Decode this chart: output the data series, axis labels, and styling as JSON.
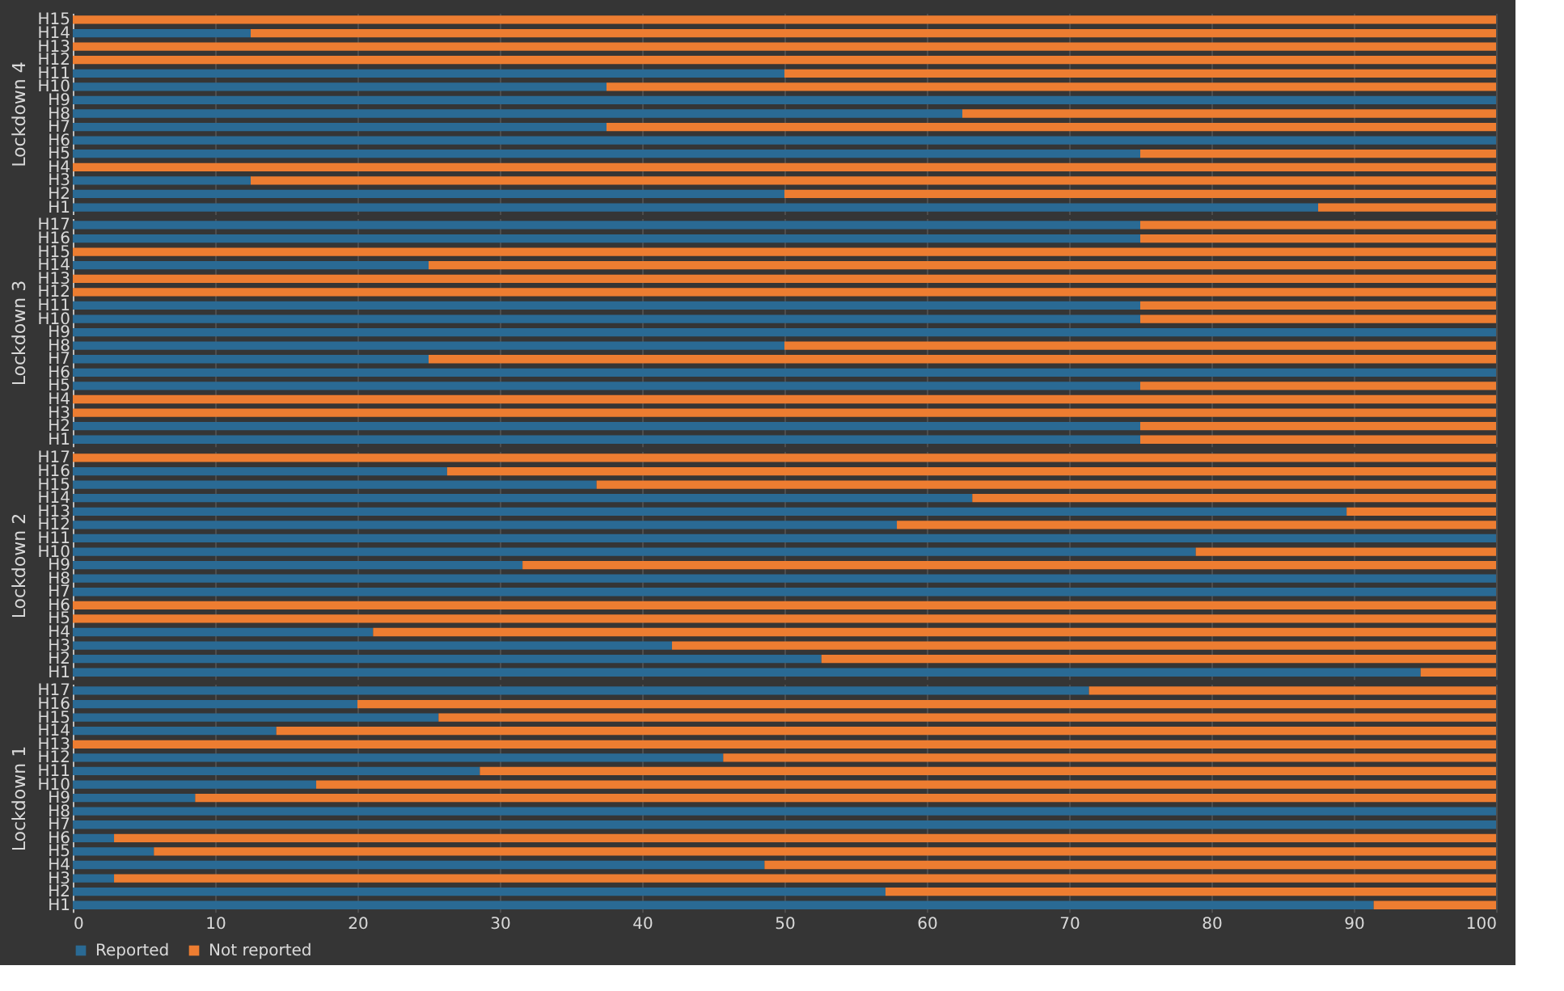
{
  "chart_data": [
    {
      "type": "bar",
      "orientation": "horizontal",
      "stacked": true,
      "ylabel": "Lockdown 4",
      "categories": [
        "H15",
        "H14",
        "H13",
        "H12",
        "H11",
        "H10",
        "H9",
        "H8",
        "H7",
        "H6",
        "H5",
        "H4",
        "H3",
        "H2",
        "H1"
      ],
      "series": [
        {
          "color": "#2a6a94",
          "values": [
            0,
            12.5,
            0,
            0,
            50,
            37.5,
            100,
            62.5,
            37.5,
            100,
            75,
            0,
            12.5,
            50,
            87.5
          ]
        },
        {
          "color": "#ed7d31",
          "values": [
            100,
            87.5,
            100,
            100,
            50,
            62.5,
            0,
            37.5,
            62.5,
            0,
            25,
            100,
            87.5,
            50,
            12.5
          ]
        }
      ],
      "xlim": [
        0,
        100
      ],
      "xticks": [
        0,
        10,
        20,
        30,
        40,
        50,
        60,
        70,
        80,
        90,
        100
      ],
      "grid": "x",
      "tick_labels": "y"
    },
    {
      "type": "bar",
      "orientation": "horizontal",
      "stacked": true,
      "ylabel": "Lockdown 3",
      "categories": [
        "H17",
        "H16",
        "H15",
        "H14",
        "H13",
        "H12",
        "H11",
        "H10",
        "H9",
        "H8",
        "H7",
        "H6",
        "H5",
        "H4",
        "H3",
        "H2",
        "H1"
      ],
      "series": [
        {
          "color": "#2a6a94",
          "values": [
            75,
            75,
            0,
            25,
            0,
            0,
            75,
            75,
            100,
            50,
            25,
            100,
            75,
            0,
            0,
            75,
            75
          ]
        },
        {
          "color": "#ed7d31",
          "values": [
            25,
            25,
            100,
            75,
            100,
            100,
            25,
            25,
            0,
            50,
            75,
            0,
            25,
            100,
            100,
            25,
            25
          ]
        }
      ],
      "xlim": [
        0,
        100
      ],
      "xticks": [
        0,
        10,
        20,
        30,
        40,
        50,
        60,
        70,
        80,
        90,
        100
      ],
      "grid": "x",
      "tick_labels": "y"
    },
    {
      "type": "bar",
      "orientation": "horizontal",
      "stacked": true,
      "ylabel": "Lockdown 2",
      "categories": [
        "H17",
        "H16",
        "H15",
        "H14",
        "H13",
        "H12",
        "H11",
        "H10",
        "H9",
        "H8",
        "H7",
        "H6",
        "H5",
        "H4",
        "H3",
        "H2",
        "H1"
      ],
      "series": [
        {
          "color": "#2a6a94",
          "values": [
            0,
            26.3,
            36.8,
            63.2,
            89.5,
            57.9,
            100,
            78.9,
            31.6,
            100,
            100,
            0,
            0,
            21.1,
            42.1,
            52.6,
            94.7
          ]
        },
        {
          "color": "#ed7d31",
          "values": [
            100,
            73.7,
            63.2,
            36.8,
            10.5,
            42.1,
            0,
            21.1,
            68.4,
            0,
            0,
            100,
            100,
            78.9,
            57.9,
            47.4,
            5.3
          ]
        }
      ],
      "xlim": [
        0,
        100
      ],
      "xticks": [
        0,
        10,
        20,
        30,
        40,
        50,
        60,
        70,
        80,
        90,
        100
      ],
      "grid": "x",
      "tick_labels": "y"
    },
    {
      "type": "bar",
      "orientation": "horizontal",
      "stacked": true,
      "ylabel": "Lockdown 1",
      "categories": [
        "H17",
        "H16",
        "H15",
        "H14",
        "H13",
        "H12",
        "H11",
        "H10",
        "H9",
        "H8",
        "H7",
        "H6",
        "H5",
        "H4",
        "H3",
        "H2",
        "H1"
      ],
      "series": [
        {
          "name": "Reported",
          "color": "#2a6a94",
          "values": [
            71.4,
            20,
            25.7,
            14.3,
            0,
            45.7,
            28.6,
            17.1,
            8.6,
            100,
            100,
            2.9,
            5.7,
            48.6,
            2.9,
            57.1,
            91.4
          ]
        },
        {
          "name": "Not reported",
          "color": "#ed7d31",
          "values": [
            28.6,
            80,
            74.3,
            85.7,
            100,
            54.3,
            71.4,
            82.9,
            91.4,
            0,
            0,
            97.1,
            94.3,
            51.4,
            97.1,
            42.9,
            8.6
          ]
        }
      ],
      "xlim": [
        0,
        100
      ],
      "xticks": [
        0,
        10,
        20,
        30,
        40,
        50,
        60,
        70,
        80,
        90,
        100
      ],
      "grid": "x",
      "legend": "bottom"
    }
  ]
}
